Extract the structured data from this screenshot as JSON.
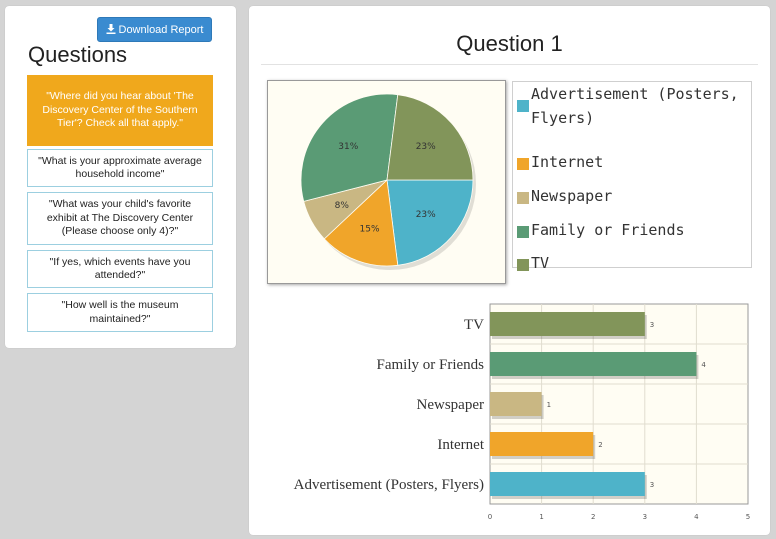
{
  "sidebar": {
    "download_label": "Download Report",
    "heading": "Questions",
    "questions": [
      {
        "text": "\"Where did you hear about 'The Discovery Center of the Southern Tier'? Check all that apply.\"",
        "active": true
      },
      {
        "text": "\"What is your approximate average household income\"",
        "active": false
      },
      {
        "text": "\"What was your child's favorite exhibit at The Discovery Center (Please choose only 4)?\"",
        "active": false
      },
      {
        "text": "\"If yes, which events have you attended?\"",
        "active": false
      },
      {
        "text": "\"How well is the museum maintained?\"",
        "active": false
      }
    ]
  },
  "main": {
    "title": "Question 1"
  },
  "colors": {
    "Advertisement (Posters, Flyers)": "#4eb3c9",
    "Internet": "#f0a52a",
    "Newspaper": "#c9b783",
    "Family or Friends": "#5a9b75",
    "TV": "#82955a",
    "active_question": "#f0a81c",
    "download_button": "#3a8bd0"
  },
  "chart_data": [
    {
      "type": "pie",
      "categories": [
        "Advertisement (Posters, Flyers)",
        "Internet",
        "Newspaper",
        "Family or Friends",
        "TV"
      ],
      "values": [
        23,
        15,
        8,
        31,
        23
      ],
      "value_labels": [
        "23%",
        "15%",
        "8%",
        "31%",
        "23%"
      ],
      "legend_position": "right"
    },
    {
      "type": "bar",
      "orientation": "horizontal",
      "categories": [
        "Advertisement (Posters, Flyers)",
        "Internet",
        "Newspaper",
        "Family or Friends",
        "TV"
      ],
      "values": [
        3,
        2,
        1,
        4,
        3
      ],
      "xlim": [
        0,
        5
      ],
      "xticks": [
        "0",
        "1",
        "2",
        "3",
        "4",
        "5"
      ],
      "grid": true
    }
  ]
}
